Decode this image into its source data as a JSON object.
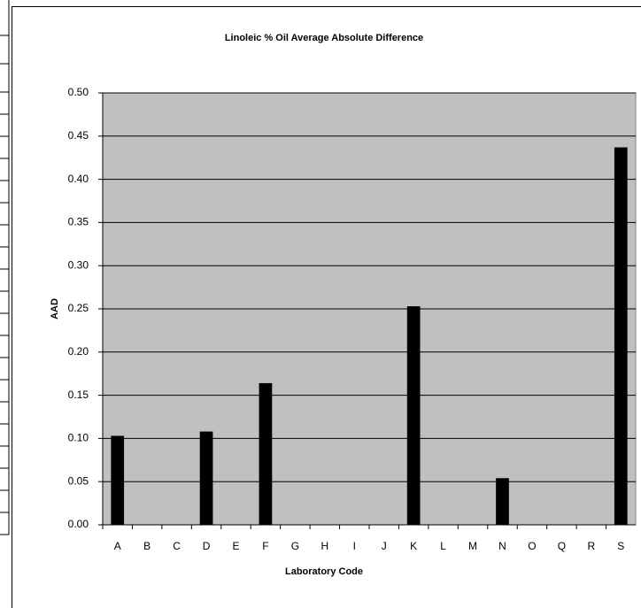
{
  "chart_data": {
    "type": "bar",
    "title": "Linoleic % Oil Average Absolute Difference",
    "x_label": "Laboratory Code",
    "y_label": "AAD",
    "categories": [
      "A",
      "B",
      "C",
      "D",
      "E",
      "F",
      "G",
      "H",
      "I",
      "J",
      "K",
      "L",
      "M",
      "N",
      "O",
      "Q",
      "R",
      "S"
    ],
    "values": [
      0.103,
      0,
      0,
      0.108,
      0,
      0.164,
      0,
      0,
      0,
      0,
      0.253,
      0,
      0,
      0.054,
      0,
      0,
      0,
      0.437
    ],
    "color": "#000000",
    "plot_background": "#c0c0c0",
    "ylim": [
      0,
      0.5
    ],
    "yticks": [
      {
        "value": 0,
        "label": "0.00"
      },
      {
        "value": 0.05,
        "label": "0.05"
      },
      {
        "value": 0.1,
        "label": "0.10"
      },
      {
        "value": 0.15,
        "label": "0.15"
      },
      {
        "value": 0.2,
        "label": "0.20"
      },
      {
        "value": 0.25,
        "label": "0.25"
      },
      {
        "value": 0.3,
        "label": "0.30"
      },
      {
        "value": 0.35,
        "label": "0.35"
      },
      {
        "value": 0.4,
        "label": "0.40"
      },
      {
        "value": 0.45,
        "label": "0.45"
      },
      {
        "value": 0.5,
        "label": "0.50"
      }
    ],
    "grid": true
  }
}
